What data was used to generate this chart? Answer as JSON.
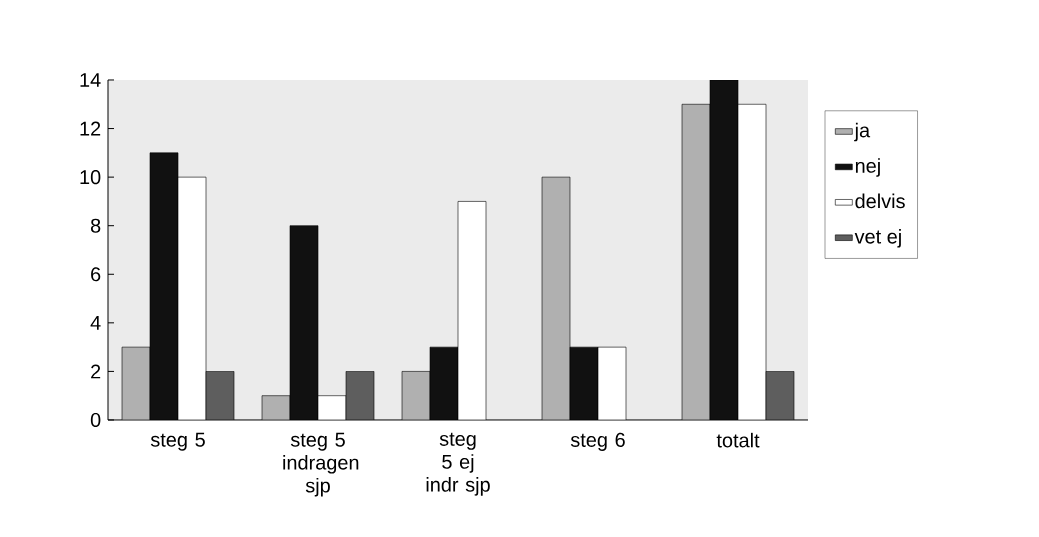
{
  "chart_data": {
    "type": "bar",
    "categories": [
      "steg 5",
      "steg 5 indragen sjp",
      "steg 5 ej indr sjp",
      "steg 6",
      "totalt"
    ],
    "series": [
      {
        "name": "ja",
        "color": "#b0b0b0",
        "values": [
          3,
          1,
          2,
          10,
          13
        ]
      },
      {
        "name": "nej",
        "color": "#111111",
        "values": [
          11,
          8,
          3,
          3,
          14
        ]
      },
      {
        "name": "delvis",
        "color": "#ffffff",
        "values": [
          10,
          1,
          9,
          3,
          13
        ]
      },
      {
        "name": "vet ej",
        "color": "#5e5e5e",
        "values": [
          2,
          2,
          null,
          null,
          2
        ]
      }
    ],
    "ylim": [
      0,
      14
    ],
    "yticks": [
      0,
      2,
      4,
      6,
      8,
      10,
      12,
      14
    ],
    "grid": false,
    "legend": "right"
  }
}
